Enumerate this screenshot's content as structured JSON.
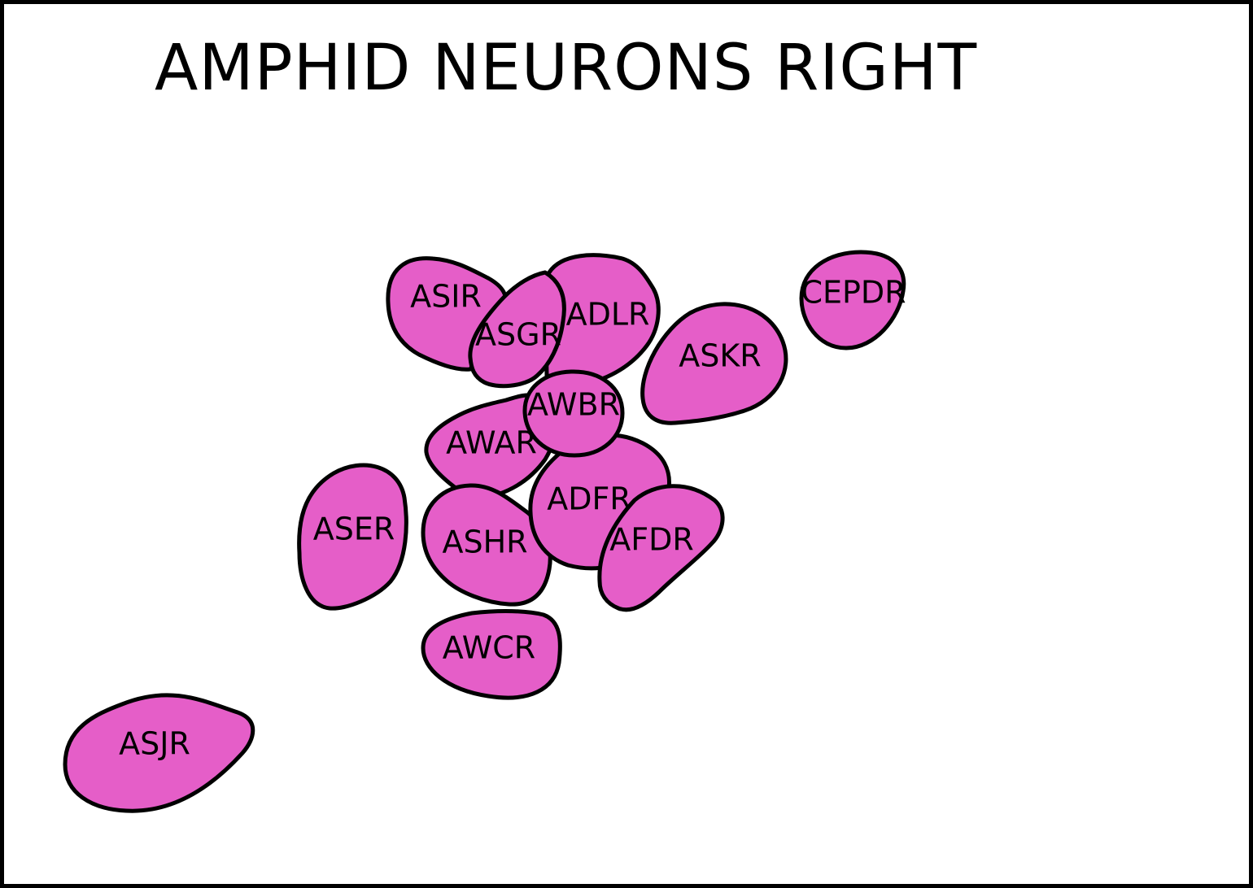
{
  "title": "AMPHID NEURONS RIGHT",
  "colors": {
    "cell_fill": "#e55ec8",
    "outline": "#000000",
    "background": "#ffffff"
  },
  "neurons": [
    {
      "id": "asjr",
      "label": "ASJR"
    },
    {
      "id": "awcr",
      "label": "AWCR"
    },
    {
      "id": "aser",
      "label": "ASER"
    },
    {
      "id": "cepdr",
      "label": "CEPDR"
    },
    {
      "id": "askr",
      "label": "ASKR"
    },
    {
      "id": "asir",
      "label": "ASIR"
    },
    {
      "id": "adlr",
      "label": "ADLR"
    },
    {
      "id": "asgr",
      "label": "ASGR"
    },
    {
      "id": "awar",
      "label": "AWAR"
    },
    {
      "id": "ashr",
      "label": "ASHR"
    },
    {
      "id": "adfr",
      "label": "ADFR"
    },
    {
      "id": "afdr",
      "label": "AFDR"
    },
    {
      "id": "awbr",
      "label": "AWBR"
    }
  ]
}
